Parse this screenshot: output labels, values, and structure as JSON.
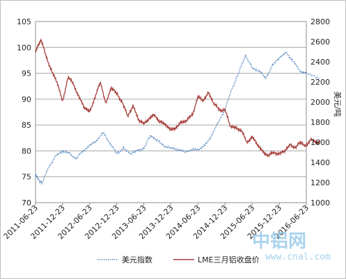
{
  "chart_data": {
    "type": "line",
    "x_labels": [
      "2011-06-23",
      "2011-12-23",
      "2012-06-23",
      "2012-12-23",
      "2013-06-23",
      "2013-12-23",
      "2014-06-23",
      "2014-12-23",
      "2015-06-23",
      "2015-12-23",
      "2016-06-23"
    ],
    "y_left": {
      "ticks": [
        70,
        75,
        80,
        85,
        90,
        95,
        100,
        105
      ],
      "range": [
        70,
        105
      ]
    },
    "y_right": {
      "ticks": [
        1000,
        1200,
        1400,
        1600,
        1800,
        2000,
        2200,
        2400,
        2600,
        2800
      ],
      "range": [
        1000,
        2800
      ],
      "label": "美元/吨"
    },
    "grid": true,
    "legend_position": "bottom",
    "series": [
      {
        "name": "美元指数",
        "axis": "left",
        "color": "#4f81bd",
        "style": "dotted",
        "x": [
          0,
          0.1,
          0.25,
          0.5,
          0.75,
          1,
          1.25,
          1.5,
          1.75,
          2,
          2.25,
          2.5,
          2.75,
          3,
          3.25,
          3.5,
          3.75,
          4,
          4.25,
          4.5,
          4.75,
          5,
          5.25,
          5.5,
          5.75,
          6,
          6.25,
          6.5,
          6.75,
          7,
          7.25,
          7.5,
          7.75,
          8,
          8.25,
          8.5,
          8.75,
          9,
          9.25,
          9.5,
          9.75,
          10,
          10.5
        ],
        "values": [
          75.5,
          74.5,
          73.8,
          77,
          79,
          80,
          79.5,
          78.5,
          80,
          81,
          82,
          83.5,
          81.5,
          79.5,
          80.5,
          79.5,
          80,
          80.5,
          83,
          82,
          81,
          80.5,
          80.3,
          79.8,
          80.2,
          80.3,
          81,
          83,
          85.5,
          88,
          92,
          95,
          98.5,
          96,
          95.5,
          94,
          96.5,
          98,
          99,
          97.5,
          95.5,
          95,
          94
        ]
      },
      {
        "name": "LME三月铝收盘价",
        "axis": "right",
        "color": "#a63e3a",
        "style": "solid",
        "x": [
          0,
          0.1,
          0.2,
          0.4,
          0.6,
          0.8,
          1,
          1.2,
          1.4,
          1.6,
          1.8,
          2,
          2.2,
          2.4,
          2.6,
          2.8,
          3,
          3.2,
          3.4,
          3.6,
          3.8,
          4,
          4.2,
          4.4,
          4.6,
          4.8,
          5,
          5.2,
          5.4,
          5.6,
          5.8,
          6,
          6.2,
          6.4,
          6.6,
          6.8,
          7,
          7.2,
          7.4,
          7.6,
          7.8,
          8,
          8.2,
          8.4,
          8.6,
          8.8,
          9,
          9.2,
          9.4,
          9.6,
          9.8,
          10,
          10.2,
          10.4,
          10.5
        ],
        "values": [
          2500,
          2560,
          2620,
          2450,
          2300,
          2200,
          2000,
          2250,
          2180,
          2050,
          1950,
          1900,
          2050,
          2200,
          1980,
          2150,
          2080,
          2000,
          1860,
          1960,
          1830,
          1780,
          1840,
          1870,
          1800,
          1780,
          1720,
          1750,
          1800,
          1820,
          1880,
          2050,
          2020,
          2090,
          1980,
          1920,
          1920,
          1760,
          1740,
          1720,
          1600,
          1650,
          1580,
          1500,
          1470,
          1500,
          1480,
          1520,
          1570,
          1550,
          1600,
          1560,
          1640,
          1580,
          1620
        ]
      }
    ]
  },
  "legend": {
    "series1_label": "美元指数",
    "series2_label": "LME三月铝收盘价"
  },
  "right_axis_label": "美元/吨",
  "watermark": {
    "main": "中铝网",
    "url": "www.cnal.com"
  }
}
